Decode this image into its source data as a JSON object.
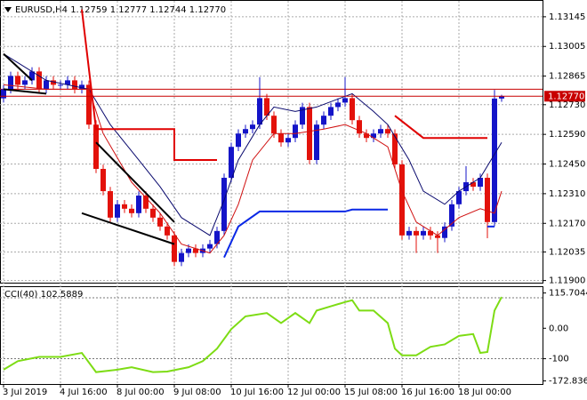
{
  "chart_data": [
    {
      "type": "candlestick",
      "title": "EURUSD,H4 1.12759 1.12777 1.12744 1.12770",
      "categories": [
        "3 Jul 2019",
        null,
        null,
        null,
        null,
        null,
        null,
        null,
        "4 Jul 16:00",
        null,
        null,
        null,
        null,
        null,
        null,
        null,
        "8 Jul 00:00",
        null,
        null,
        null,
        null,
        null,
        null,
        null,
        "9 Jul 08:00",
        null,
        null,
        null,
        null,
        null,
        null,
        null,
        "10 Jul 16:00",
        null,
        null,
        null,
        null,
        null,
        null,
        null,
        "12 Jul 00:00",
        null,
        null,
        null,
        null,
        null,
        null,
        null,
        "15 Jul 08:00",
        null,
        null,
        null,
        null,
        null,
        null,
        null,
        "16 Jul 16:00",
        null,
        null,
        null,
        null,
        null,
        null,
        null,
        "18 Jul 00:00",
        null,
        null,
        null,
        null,
        null,
        null
      ],
      "open": [
        1.1276,
        1.12803,
        1.12866,
        1.12824,
        1.12845,
        1.12887,
        1.12803,
        1.12845,
        1.12824,
        1.12824,
        1.12845,
        1.12803,
        1.12824,
        1.12636,
        1.12427,
        1.12322,
        1.12197,
        1.1226,
        1.12239,
        1.12218,
        1.12301,
        1.12239,
        1.12197,
        1.12155,
        1.12113,
        1.11988,
        1.1203,
        1.12051,
        1.1203,
        1.12051,
        1.12072,
        1.12134,
        1.12385,
        1.12531,
        1.12594,
        1.12615,
        1.12636,
        1.12761,
        1.12678,
        1.12594,
        1.12552,
        1.12573,
        1.12636,
        1.12719,
        1.12469,
        1.12636,
        1.12678,
        1.12719,
        1.1274,
        1.12761,
        1.12657,
        1.12594,
        1.12573,
        1.12594,
        1.12615,
        1.12594,
        1.12448,
        1.12113,
        1.12134,
        1.12113,
        1.12134,
        1.12113,
        1.12101,
        1.12155,
        1.1226,
        1.12322,
        1.12364,
        1.12343,
        1.12385,
        1.12176,
        1.12759
      ],
      "high": [
        1.12823,
        1.12886,
        1.12886,
        1.12865,
        1.12907,
        1.12907,
        1.12865,
        1.12865,
        1.12844,
        1.12865,
        1.12865,
        1.12844,
        1.12844,
        1.12656,
        1.12447,
        1.12342,
        1.1228,
        1.1228,
        1.12259,
        1.12321,
        1.12321,
        1.12259,
        1.12217,
        1.12175,
        1.12133,
        1.1205,
        1.12071,
        1.12071,
        1.12071,
        1.12092,
        1.12154,
        1.12405,
        1.12551,
        1.12614,
        1.12635,
        1.12656,
        1.1286,
        1.12781,
        1.12698,
        1.12614,
        1.12593,
        1.12656,
        1.12739,
        1.12739,
        1.12656,
        1.12698,
        1.12739,
        1.1276,
        1.1286,
        1.12781,
        1.12677,
        1.12614,
        1.12614,
        1.12635,
        1.12635,
        1.12614,
        1.12468,
        1.12154,
        1.12154,
        1.12154,
        1.12154,
        1.12133,
        1.12175,
        1.1228,
        1.12342,
        1.1244,
        1.12384,
        1.12405,
        1.12405,
        1.128,
        1.12777
      ],
      "low": [
        1.1274,
        1.12783,
        1.12804,
        1.12804,
        1.12825,
        1.12783,
        1.12783,
        1.12804,
        1.12804,
        1.12804,
        1.12783,
        1.12783,
        1.12616,
        1.12407,
        1.12302,
        1.12177,
        1.12177,
        1.12219,
        1.12198,
        1.12198,
        1.12219,
        1.12177,
        1.12135,
        1.12093,
        1.11968,
        1.11968,
        1.1201,
        1.1201,
        1.1201,
        1.12031,
        1.12052,
        1.12114,
        1.12365,
        1.12511,
        1.12574,
        1.12595,
        1.12616,
        1.12658,
        1.12574,
        1.12532,
        1.12532,
        1.12553,
        1.12616,
        1.12449,
        1.12449,
        1.12616,
        1.12658,
        1.12699,
        1.1272,
        1.12637,
        1.12574,
        1.12553,
        1.12553,
        1.12574,
        1.12574,
        1.12428,
        1.12093,
        1.12093,
        1.1203,
        1.12093,
        1.12093,
        1.1203,
        1.12081,
        1.12135,
        1.1224,
        1.12302,
        1.12323,
        1.12323,
        1.121,
        1.12156,
        1.12744
      ],
      "close": [
        1.12803,
        1.12866,
        1.12824,
        1.12845,
        1.12887,
        1.12803,
        1.12845,
        1.12824,
        1.12824,
        1.12845,
        1.12803,
        1.12824,
        1.12636,
        1.12427,
        1.12322,
        1.12197,
        1.1226,
        1.12239,
        1.12218,
        1.12301,
        1.12239,
        1.12197,
        1.12155,
        1.12113,
        1.11988,
        1.1203,
        1.12051,
        1.1203,
        1.12051,
        1.12072,
        1.12134,
        1.12385,
        1.12531,
        1.12594,
        1.12615,
        1.12636,
        1.12761,
        1.12678,
        1.12594,
        1.12552,
        1.12573,
        1.12636,
        1.12719,
        1.12469,
        1.12636,
        1.12678,
        1.12719,
        1.1274,
        1.12761,
        1.12657,
        1.12594,
        1.12573,
        1.12594,
        1.12615,
        1.12594,
        1.12448,
        1.12113,
        1.12134,
        1.12113,
        1.12134,
        1.12113,
        1.12101,
        1.12155,
        1.1226,
        1.12322,
        1.12364,
        1.12343,
        1.12385,
        1.12176,
        1.12759,
        1.1277
      ],
      "up_color": "#1414c8",
      "down_color": "#e3120b",
      "ylim": [
        1.1189,
        1.1322
      ],
      "yticks": [
        1.13145,
        1.13005,
        1.12865,
        {
          "value": 1.1273,
          "label": "1.12730"
        },
        {
          "value": 1.1259,
          "label": "1.12590"
        },
        {
          "value": 1.1245,
          "label": "1.12450"
        },
        {
          "value": 1.1231,
          "label": "1.12310"
        },
        {
          "value": 1.1217,
          "label": "1.12170"
        },
        1.12035,
        {
          "value": 1.119,
          "label": "1.11900"
        }
      ],
      "grid": true,
      "price_lines": [
        {
          "value": 1.12803,
          "color": "#c80000"
        }
      ],
      "last_price": {
        "value": 1.1277,
        "label": "1.12770",
        "color": "#c80000"
      },
      "lines": [
        {
          "color": "#0a0a6e",
          "width": 1,
          "x": [
            0,
            6,
            12,
            15,
            19,
            22,
            25,
            29,
            31,
            33,
            36,
            38,
            41,
            44,
            49,
            52,
            54,
            57,
            59,
            62,
            64,
            67,
            70
          ],
          "values": [
            1.1297,
            1.12845,
            1.12803,
            1.12636,
            1.12469,
            1.12343,
            1.12197,
            1.12113,
            1.1228,
            1.12469,
            1.12636,
            1.12719,
            1.12698,
            1.12719,
            1.12782,
            1.12698,
            1.12636,
            1.12469,
            1.12322,
            1.1226,
            1.12322,
            1.12385,
            1.12552
          ]
        },
        {
          "color": "#d01010",
          "width": 1,
          "x": [
            0,
            6,
            12,
            14,
            18,
            22,
            25,
            29,
            31,
            33,
            35,
            38,
            41,
            45,
            48,
            51,
            54,
            56,
            58,
            61,
            64,
            67,
            69,
            70
          ],
          "values": [
            1.12824,
            1.12803,
            1.12803,
            1.12594,
            1.12364,
            1.12218,
            1.12072,
            1.1203,
            1.12113,
            1.1226,
            1.12469,
            1.12594,
            1.12594,
            1.12615,
            1.12636,
            1.12594,
            1.12531,
            1.12322,
            1.12176,
            1.12113,
            1.12197,
            1.12239,
            1.12218,
            1.12322
          ]
        },
        {
          "color": "#e00000",
          "width": 2,
          "x": [
            11,
            13,
            24,
            24,
            30,
            null,
            55,
            59,
            68
          ],
          "values": [
            1.13179,
            1.12615,
            1.12615,
            1.12469,
            1.12469,
            null,
            1.12678,
            1.12573,
            1.12573
          ]
        },
        {
          "color": "#0a28e6",
          "width": 2,
          "x": [
            31,
            33,
            36,
            48,
            49,
            54,
            null,
            68,
            69
          ],
          "values": [
            1.12009,
            1.12155,
            1.12226,
            1.12226,
            1.12235,
            1.12235,
            null,
            1.12155,
            1.12155
          ]
        },
        {
          "color": "#000000",
          "width": 2,
          "x": [
            0,
            4,
            null,
            0,
            6,
            null,
            13,
            24,
            null,
            11,
            24
          ],
          "values": [
            1.1297,
            1.12845,
            null,
            1.12803,
            1.12782,
            null,
            1.12552,
            1.12176,
            null,
            1.12218,
            1.12072
          ]
        }
      ]
    },
    {
      "type": "line",
      "title": "CCI(40) 102.5889",
      "x": [
        0,
        2,
        5,
        8,
        11,
        13,
        16,
        18,
        21,
        23,
        26,
        28,
        30,
        32,
        34,
        37,
        39,
        41,
        43,
        44,
        46,
        48,
        49,
        50,
        52,
        54,
        55,
        56,
        58,
        60,
        62,
        64,
        66,
        67,
        68,
        69,
        70
      ],
      "values": [
        -136,
        -108,
        -94,
        -94,
        -81,
        -144,
        -136,
        -128,
        -144,
        -142,
        -128,
        -108,
        -67,
        -3,
        39,
        50,
        17,
        50,
        17,
        58,
        72,
        86,
        92,
        58,
        58,
        17,
        -67,
        -89,
        -89,
        -61,
        -53,
        -25,
        -19,
        -81,
        -78,
        58,
        102.5889
      ],
      "color": "#7ddc14",
      "ylim": [
        -183,
        135
      ],
      "yticks": [
        115.7044,
        {
          "value": 0,
          "label": "0.00"
        },
        -100,
        -172.8363
      ],
      "levels": [
        100,
        -100
      ]
    }
  ]
}
